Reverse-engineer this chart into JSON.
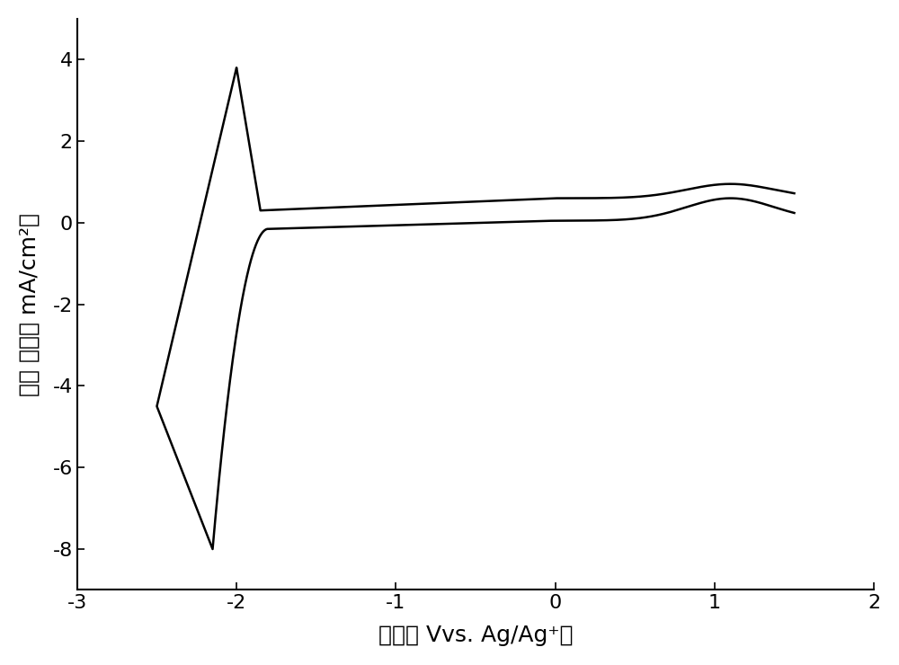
{
  "xlim": [
    -3,
    2
  ],
  "ylim": [
    -9,
    5
  ],
  "xticks": [
    -3,
    -2,
    -1,
    0,
    1,
    2
  ],
  "yticks": [
    -8,
    -6,
    -4,
    -2,
    0,
    2,
    4
  ],
  "xlabel": "电压（ Vvs. Ag/Ag⁺）",
  "ylabel": "电流 密度（ mA/cm²）",
  "line_color": "#000000",
  "line_width": 1.8,
  "background_color": "#ffffff",
  "figsize": [
    10.0,
    7.4
  ],
  "dpi": 100
}
